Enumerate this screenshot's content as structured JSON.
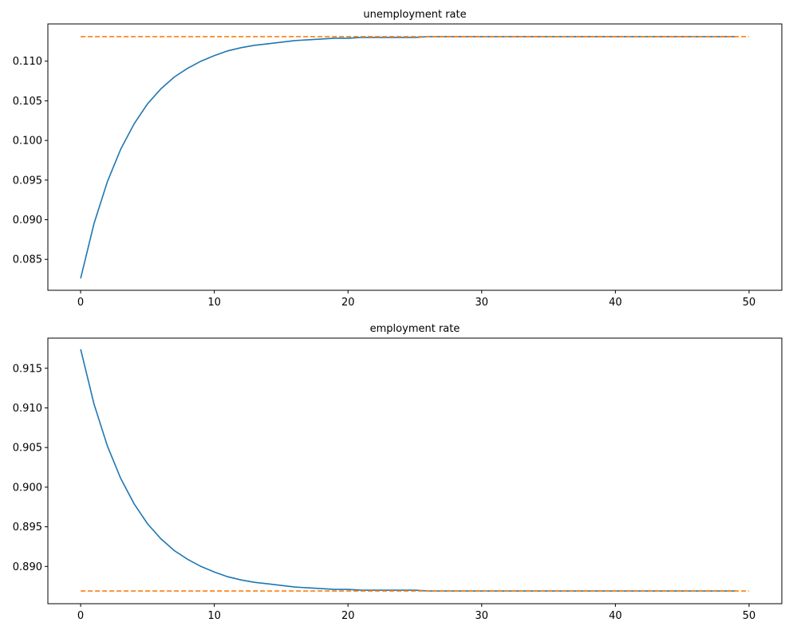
{
  "chart_data": [
    {
      "type": "line",
      "title": "unemployment rate",
      "xlabel": "",
      "ylabel": "",
      "xlim": [
        -2.45,
        52.45
      ],
      "ylim": [
        0.0811,
        0.1147
      ],
      "xticks": [
        0,
        10,
        20,
        30,
        40,
        50
      ],
      "yticks": [
        0.085,
        0.09,
        0.095,
        0.1,
        0.105,
        0.11
      ],
      "ytick_labels": [
        "0.085",
        "0.090",
        "0.095",
        "0.100",
        "0.105",
        "0.110"
      ],
      "grid": false,
      "series": [
        {
          "style": "solid",
          "color": "#1f77b4",
          "x": [
            0,
            1,
            2,
            3,
            4,
            5,
            6,
            7,
            8,
            9,
            10,
            11,
            12,
            13,
            14,
            15,
            16,
            17,
            18,
            19,
            20,
            21,
            22,
            23,
            24,
            25,
            26,
            27,
            28,
            29,
            30,
            31,
            32,
            33,
            34,
            35,
            36,
            37,
            38,
            39,
            40,
            41,
            42,
            43,
            44,
            45,
            46,
            47,
            48,
            49
          ],
          "y": [
            0.0826,
            0.0895,
            0.0948,
            0.0989,
            0.1021,
            0.1046,
            0.1065,
            0.108,
            0.1091,
            0.11,
            0.1107,
            0.1113,
            0.1117,
            0.112,
            0.1122,
            0.1124,
            0.1126,
            0.1127,
            0.1128,
            0.1129,
            0.1129,
            0.113,
            0.113,
            0.113,
            0.113,
            0.113,
            0.1131,
            0.1131,
            0.1131,
            0.1131,
            0.1131,
            0.1131,
            0.1131,
            0.1131,
            0.1131,
            0.1131,
            0.1131,
            0.1131,
            0.1131,
            0.1131,
            0.1131,
            0.1131,
            0.1131,
            0.1131,
            0.1131,
            0.1131,
            0.1131,
            0.1131,
            0.1131,
            0.1131
          ]
        },
        {
          "style": "dashed",
          "color": "#ff7f0e",
          "x": [
            0,
            50
          ],
          "y": [
            0.1131,
            0.1131
          ]
        }
      ]
    },
    {
      "type": "line",
      "title": "employment rate",
      "xlabel": "",
      "ylabel": "",
      "xlim": [
        -2.45,
        52.45
      ],
      "ylim": [
        0.8853,
        0.9188
      ],
      "xticks": [
        0,
        10,
        20,
        30,
        40,
        50
      ],
      "yticks": [
        0.89,
        0.895,
        0.9,
        0.905,
        0.91,
        0.915
      ],
      "ytick_labels": [
        "0.890",
        "0.895",
        "0.900",
        "0.905",
        "0.910",
        "0.915"
      ],
      "grid": false,
      "series": [
        {
          "style": "solid",
          "color": "#1f77b4",
          "x": [
            0,
            1,
            2,
            3,
            4,
            5,
            6,
            7,
            8,
            9,
            10,
            11,
            12,
            13,
            14,
            15,
            16,
            17,
            18,
            19,
            20,
            21,
            22,
            23,
            24,
            25,
            26,
            27,
            28,
            29,
            30,
            31,
            32,
            33,
            34,
            35,
            36,
            37,
            38,
            39,
            40,
            41,
            42,
            43,
            44,
            45,
            46,
            47,
            48,
            49
          ],
          "y": [
            0.9174,
            0.9105,
            0.9052,
            0.9011,
            0.8979,
            0.8954,
            0.8935,
            0.892,
            0.8909,
            0.89,
            0.8893,
            0.8887,
            0.8883,
            0.888,
            0.8878,
            0.8876,
            0.8874,
            0.8873,
            0.8872,
            0.8871,
            0.8871,
            0.887,
            0.887,
            0.887,
            0.887,
            0.887,
            0.8869,
            0.8869,
            0.8869,
            0.8869,
            0.8869,
            0.8869,
            0.8869,
            0.8869,
            0.8869,
            0.8869,
            0.8869,
            0.8869,
            0.8869,
            0.8869,
            0.8869,
            0.8869,
            0.8869,
            0.8869,
            0.8869,
            0.8869,
            0.8869,
            0.8869,
            0.8869,
            0.8869
          ]
        },
        {
          "style": "dashed",
          "color": "#ff7f0e",
          "x": [
            0,
            50
          ],
          "y": [
            0.8869,
            0.8869
          ]
        }
      ]
    }
  ]
}
